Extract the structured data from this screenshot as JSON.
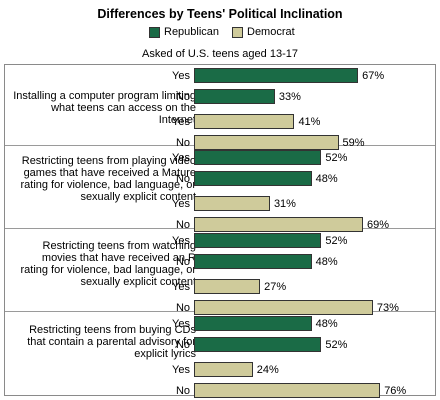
{
  "colors": {
    "republican": "#1a6b46",
    "democrat": "#cfcb9b"
  },
  "chart_data": {
    "type": "bar",
    "orientation": "horizontal",
    "title": "Differences by Teens' Political Inclination",
    "subtitle": "Asked of U.S. teens aged 13-17",
    "legend": {
      "position": "top",
      "entries": [
        "Republican",
        "Democrat"
      ]
    },
    "xlim": [
      0,
      100
    ],
    "unit": "%",
    "groups": [
      {
        "question": "Installing a computer program limiting what teens can access on the Internet",
        "series": [
          {
            "name": "Republican",
            "categories": [
              "Yes",
              "No"
            ],
            "values": [
              67,
              33
            ]
          },
          {
            "name": "Democrat",
            "categories": [
              "Yes",
              "No"
            ],
            "values": [
              41,
              59
            ]
          }
        ]
      },
      {
        "question": "Restricting teens from playing video games that have received a Mature rating for violence, bad language, or sexually explicit content",
        "series": [
          {
            "name": "Republican",
            "categories": [
              "Yes",
              "No"
            ],
            "values": [
              52,
              48
            ]
          },
          {
            "name": "Democrat",
            "categories": [
              "Yes",
              "No"
            ],
            "values": [
              31,
              69
            ]
          }
        ]
      },
      {
        "question": "Restricting teens from watching movies that have received an R rating for violence, bad language, or sexually explicit content",
        "series": [
          {
            "name": "Republican",
            "categories": [
              "Yes",
              "No"
            ],
            "values": [
              52,
              48
            ]
          },
          {
            "name": "Democrat",
            "categories": [
              "Yes",
              "No"
            ],
            "values": [
              27,
              73
            ]
          }
        ]
      },
      {
        "question": "Restricting teens from buying CDs that contain a parental advisory for explicit lyrics",
        "series": [
          {
            "name": "Republican",
            "categories": [
              "Yes",
              "No"
            ],
            "values": [
              48,
              52
            ]
          },
          {
            "name": "Democrat",
            "categories": [
              "Yes",
              "No"
            ],
            "values": [
              24,
              76
            ]
          }
        ]
      }
    ]
  }
}
